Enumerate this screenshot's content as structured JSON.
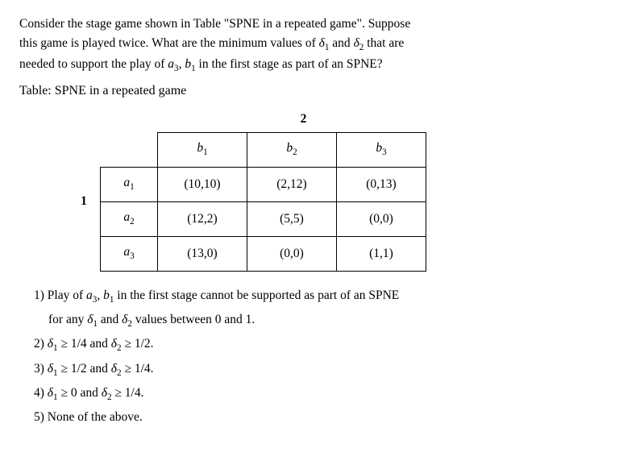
{
  "question": {
    "line1_a": "Consider the stage game shown in Table \"SPNE in a repeated game\". Suppose",
    "line2_a": "this game is played twice. What are the minimum values of ",
    "d1": "δ",
    "d1s": "1",
    "and1": " and ",
    "d2": "δ",
    "d2s": "2",
    "line2_b": " that are",
    "line3_a": "needed to support the play of ",
    "a3": "a",
    "a3s": "3",
    "comma": ", ",
    "b1": "b",
    "b1s": "1",
    "line3_b": " in the first stage as part of an SPNE?"
  },
  "table_title": "Table: SPNE in a repeated game",
  "players": {
    "col": "2",
    "row": "1"
  },
  "headers": {
    "b1": "b",
    "b1s": "1",
    "b2": "b",
    "b2s": "2",
    "b3": "b",
    "b3s": "3",
    "a1": "a",
    "a1s": "1",
    "a2": "a",
    "a2s": "2",
    "a3": "a",
    "a3s": "3"
  },
  "cells": {
    "r1c1": "(10,10)",
    "r1c2": "(2,12)",
    "r1c3": "(0,13)",
    "r2c1": "(12,2)",
    "r2c2": "(5,5)",
    "r2c3": "(0,0)",
    "r3c1": "(13,0)",
    "r3c2": "(0,0)",
    "r3c3": "(1,1)"
  },
  "opts": {
    "o1a": "1) Play of ",
    "o1_a3": "a",
    "o1_a3s": "3",
    "o1_c": ", ",
    "o1_b1": "b",
    "o1_b1s": "1",
    "o1b": " in the first stage cannot be supported as part of an SPNE",
    "o1c_a": "for any ",
    "o1c_d1": "δ",
    "o1c_d1s": "1",
    "o1c_and": " and ",
    "o1c_d2": "δ",
    "o1c_d2s": "2",
    "o1c_b": " values between 0 and 1.",
    "o2a": "2) ",
    "o2_d1": "δ",
    "o2_d1s": "1",
    "o2_g1": " ≥ 1/4 and ",
    "o2_d2": "δ",
    "o2_d2s": "2",
    "o2_g2": " ≥ 1/2.",
    "o3a": "3) ",
    "o3_d1": "δ",
    "o3_d1s": "1",
    "o3_g1": " ≥ 1/2 and ",
    "o3_d2": "δ",
    "o3_d2s": "2",
    "o3_g2": " ≥ 1/4.",
    "o4a": "4) ",
    "o4_d1": "δ",
    "o4_d1s": "1",
    "o4_g1": " ≥ 0 and ",
    "o4_d2": "δ",
    "o4_d2s": "2",
    "o4_g2": " ≥ 1/4.",
    "o5": "5) None of the above."
  }
}
